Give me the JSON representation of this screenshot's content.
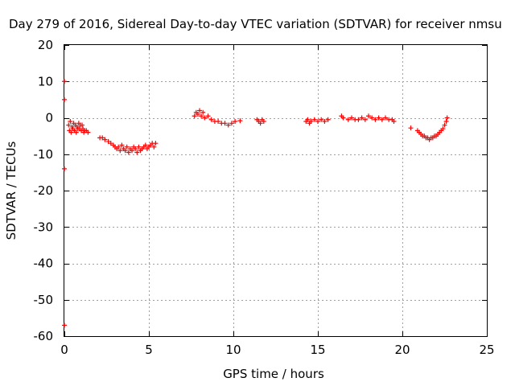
{
  "chart_data": {
    "type": "scatter",
    "title": "Day 279 of 2016, Sidereal Day-to-day VTEC variation (SDTVAR) for receiver nmsu",
    "xlabel": "GPS time / hours",
    "ylabel": "SDTVAR / TECUs",
    "xlim": [
      0,
      25
    ],
    "ylim": [
      -60,
      20
    ],
    "xticks": [
      0,
      5,
      10,
      15,
      20,
      25
    ],
    "yticks": [
      -60,
      -50,
      -40,
      -30,
      -20,
      -10,
      0,
      10,
      20
    ],
    "grid": true,
    "marker": "plus",
    "color": "#ff0000",
    "series": [
      {
        "name": "SDTVAR",
        "x": [
          0.0,
          0.0,
          0.0,
          0.0,
          0.25,
          0.3,
          0.35,
          0.4,
          0.45,
          0.5,
          0.55,
          0.6,
          0.65,
          0.7,
          0.75,
          0.8,
          0.85,
          0.9,
          0.95,
          1.0,
          1.05,
          1.1,
          1.15,
          1.2,
          1.3,
          1.4,
          2.1,
          2.25,
          2.4,
          2.6,
          2.75,
          2.9,
          3.0,
          3.1,
          3.2,
          3.3,
          3.4,
          3.5,
          3.6,
          3.7,
          3.8,
          3.9,
          4.0,
          4.1,
          4.2,
          4.3,
          4.4,
          4.5,
          4.6,
          4.7,
          4.8,
          4.9,
          5.0,
          5.1,
          5.2,
          5.3,
          5.4,
          7.7,
          7.8,
          7.9,
          8.0,
          8.1,
          8.2,
          8.3,
          8.5,
          8.7,
          8.9,
          9.1,
          9.3,
          9.5,
          9.7,
          9.9,
          10.1,
          10.4,
          11.4,
          11.5,
          11.6,
          11.7,
          11.8,
          14.3,
          14.4,
          14.5,
          14.6,
          14.8,
          15.0,
          15.2,
          15.4,
          15.6,
          16.4,
          16.5,
          16.8,
          17.0,
          17.2,
          17.4,
          17.6,
          17.8,
          18.0,
          18.2,
          18.4,
          18.6,
          18.8,
          19.0,
          19.2,
          19.4,
          19.5,
          20.5,
          20.9,
          21.0,
          21.1,
          21.2,
          21.3,
          21.4,
          21.5,
          21.6,
          21.7,
          21.8,
          21.9,
          22.0,
          22.1,
          22.2,
          22.3,
          22.4,
          22.5,
          22.6,
          22.65
        ],
        "y": [
          10.0,
          5.0,
          -14.0,
          -57.0,
          -2.0,
          -3.5,
          -1.0,
          -4.0,
          -2.5,
          -3.0,
          -1.5,
          -3.5,
          -2.0,
          -4.0,
          -2.5,
          -3.0,
          -1.5,
          -3.0,
          -2.0,
          -3.5,
          -2.0,
          -3.0,
          -4.0,
          -3.5,
          -3.5,
          -4.0,
          -5.5,
          -5.5,
          -6.0,
          -6.5,
          -7.0,
          -7.5,
          -8.0,
          -8.5,
          -8.0,
          -9.0,
          -7.5,
          -8.5,
          -9.0,
          -8.0,
          -9.5,
          -8.5,
          -9.0,
          -8.0,
          -8.5,
          -9.5,
          -8.0,
          -9.0,
          -8.5,
          -8.0,
          -7.5,
          -8.5,
          -8.0,
          -7.5,
          -7.0,
          -8.0,
          -7.0,
          0.5,
          1.5,
          1.0,
          2.0,
          0.5,
          1.5,
          0.0,
          0.5,
          -0.5,
          -1.0,
          -1.0,
          -1.5,
          -1.5,
          -2.0,
          -1.5,
          -1.0,
          -0.8,
          -0.5,
          -1.0,
          -1.5,
          -0.5,
          -1.0,
          -1.0,
          -0.5,
          -1.5,
          -1.0,
          -0.5,
          -1.0,
          -0.5,
          -1.0,
          -0.5,
          0.5,
          0.0,
          -0.5,
          0.0,
          -0.5,
          -0.5,
          0.0,
          -0.5,
          0.5,
          0.0,
          -0.5,
          0.0,
          -0.5,
          0.0,
          -0.5,
          -0.5,
          -1.0,
          -2.8,
          -3.5,
          -4.0,
          -4.5,
          -5.0,
          -5.0,
          -5.5,
          -5.5,
          -6.0,
          -5.5,
          -5.5,
          -5.0,
          -5.0,
          -4.5,
          -4.0,
          -3.5,
          -3.0,
          -2.0,
          -1.0,
          0.0
        ]
      }
    ]
  }
}
